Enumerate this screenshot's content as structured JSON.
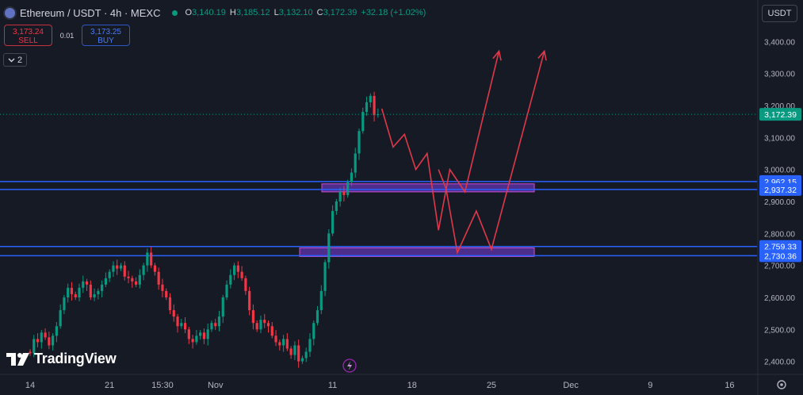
{
  "header": {
    "symbol": "Ethereum / USDT · 4h · MEXC",
    "open_label": "O",
    "open": "3,140.19",
    "high_label": "H",
    "high": "3,185.12",
    "low_label": "L",
    "low": "3,132.10",
    "close_label": "C",
    "close": "3,172.39",
    "change": "+32.18 (+1.02%)",
    "symbol_icon": "ethereum-icon",
    "status_color": "#089981"
  },
  "trade": {
    "sell_price": "3,173.24",
    "sell_label": "SELL",
    "spread": "0.01",
    "buy_price": "3,173.25",
    "buy_label": "BUY"
  },
  "indicators_toggle": {
    "count": "2",
    "icon": "chevron-down-icon"
  },
  "currency_selector": "USDT",
  "branding": {
    "name": "TradingView",
    "icon": "tradingview-logo"
  },
  "colors": {
    "background": "#161a25",
    "up": "#089981",
    "down": "#f23645",
    "zone_line": "#2962ff",
    "zone_fill": "#7b3fe4",
    "arrow": "#e0384a",
    "price_tag": "#089981"
  },
  "chart_data": {
    "type": "candlestick",
    "timeframe": "4h",
    "y_axis": {
      "ylim": [
        2370,
        3450
      ],
      "ticks": [
        2400,
        2500,
        2600,
        2700,
        2800,
        2900,
        3000,
        3100,
        3200,
        3300,
        3400
      ],
      "tick_labels": [
        "2,400.00",
        "2,500.00",
        "2,600.00",
        "2,700.00",
        "2,800.00",
        "2,900.00",
        "3,000.00",
        "3,100.00",
        "3,200.00",
        "3,300.00",
        "3,400.00"
      ]
    },
    "x_axis": {
      "ticks": [
        0,
        21,
        42,
        63,
        84,
        105,
        126,
        147,
        168,
        189,
        210
      ],
      "tick_labels": [
        "14",
        "21",
        "15:30",
        "Nov",
        "11",
        "18",
        "25",
        "Dec",
        "9",
        "16"
      ],
      "label_index": [
        0,
        21,
        35,
        49,
        80,
        101,
        122,
        143,
        164,
        185
      ]
    },
    "last_price": {
      "value": 3172.39,
      "label": "3,172.39"
    },
    "candles": {
      "first_open": 2430,
      "closes": [
        2425,
        2470,
        2460,
        2490,
        2475,
        2450,
        2480,
        2510,
        2560,
        2600,
        2630,
        2610,
        2600,
        2630,
        2650,
        2640,
        2600,
        2610,
        2620,
        2640,
        2660,
        2680,
        2700,
        2690,
        2700,
        2665,
        2660,
        2650,
        2640,
        2670,
        2700,
        2740,
        2700,
        2680,
        2640,
        2620,
        2600,
        2560,
        2540,
        2510,
        2520,
        2500,
        2470,
        2460,
        2480,
        2490,
        2470,
        2500,
        2520,
        2510,
        2540,
        2600,
        2640,
        2670,
        2700,
        2680,
        2660,
        2620,
        2560,
        2520,
        2500,
        2530,
        2520,
        2510,
        2480,
        2460,
        2450,
        2470,
        2440,
        2420,
        2450,
        2400,
        2410,
        2430,
        2470,
        2520,
        2560,
        2620,
        2710,
        2800,
        2870,
        2900,
        2930,
        2920,
        2960,
        2990,
        3050,
        3120,
        3180,
        3210,
        3230,
        3170,
        3172.39
      ],
      "up_color": "#089981",
      "down_color": "#f23645"
    },
    "zones": [
      {
        "top": 2962.15,
        "bottom": 2937.32,
        "top_label": "2,962.15",
        "bottom_label": "2,937.32",
        "box_top": 2955,
        "box_bottom": 2930
      },
      {
        "top": 2759.33,
        "bottom": 2730.36,
        "top_label": "2,759.33",
        "bottom_label": "2,730.36",
        "box_top": 2755,
        "box_bottom": 2728
      }
    ],
    "projections": [
      {
        "name": "path-a",
        "points": [
          [
            93,
            3190
          ],
          [
            96,
            3070
          ],
          [
            99,
            3110
          ],
          [
            102,
            3000
          ],
          [
            105,
            3050
          ],
          [
            108,
            2810
          ],
          [
            111,
            3000
          ],
          [
            115,
            2930
          ],
          [
            124,
            3370
          ]
        ]
      },
      {
        "name": "path-b",
        "points": [
          [
            108,
            3000
          ],
          [
            110,
            2940
          ],
          [
            113,
            2740
          ],
          [
            118,
            2870
          ],
          [
            122,
            2750
          ],
          [
            136,
            3370
          ]
        ]
      }
    ]
  }
}
